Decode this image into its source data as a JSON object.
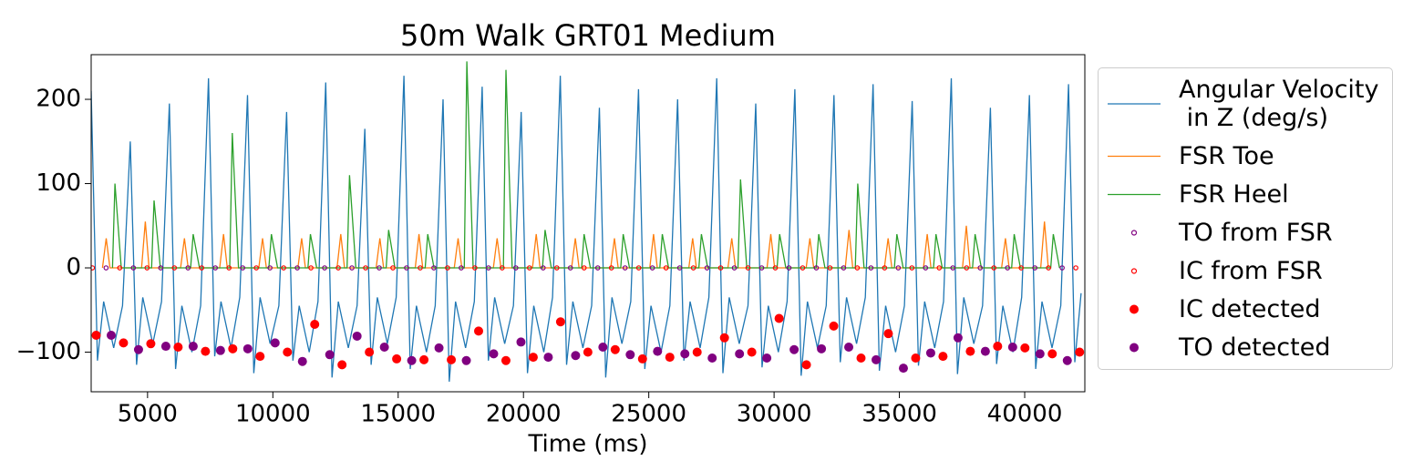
{
  "chart_data": {
    "type": "line",
    "title": "50m Walk GRT01 Medium",
    "xlabel": "Time (ms)",
    "xlim": [
      2750,
      42400
    ],
    "xticks": [
      5000,
      10000,
      15000,
      20000,
      25000,
      30000,
      35000,
      40000
    ],
    "ylim": [
      -147,
      253
    ],
    "yticks": [
      {
        "value": -100,
        "label": "−100"
      },
      0,
      100,
      200
    ],
    "legend": "outside-right",
    "series": [
      {
        "name": "Angular Velocity\n in Z (deg/s)",
        "color": "#1f77b4",
        "style": "line",
        "x": [
          2750,
          3000,
          3250,
          3650,
          4000,
          4310,
          4560,
          4810,
          5210,
          5560,
          5870,
          6120,
          6370,
          6770,
          7120,
          7430,
          7680,
          7930,
          8330,
          8680,
          8990,
          9240,
          9490,
          9890,
          10240,
          10550,
          10800,
          11050,
          11450,
          11800,
          12110,
          12360,
          12610,
          13010,
          13360,
          13670,
          13920,
          14170,
          14570,
          14920,
          15230,
          15480,
          15730,
          16130,
          16480,
          16790,
          17040,
          17290,
          17690,
          18040,
          18350,
          18600,
          18850,
          19250,
          19600,
          19910,
          20160,
          20410,
          20810,
          21160,
          21470,
          21720,
          21970,
          22370,
          22720,
          23030,
          23280,
          23530,
          23930,
          24280,
          24590,
          24840,
          25090,
          25490,
          25840,
          26150,
          26400,
          26650,
          27050,
          27400,
          27710,
          27960,
          28210,
          28610,
          28960,
          29270,
          29520,
          29770,
          30170,
          30520,
          30830,
          31080,
          31330,
          31730,
          32080,
          32390,
          32640,
          32890,
          33290,
          33640,
          33950,
          34200,
          34450,
          34850,
          35200,
          35510,
          35760,
          36010,
          36410,
          36760,
          37070,
          37320,
          37570,
          37970,
          38320,
          38630,
          38880,
          39130,
          39530,
          39880,
          40190,
          40440,
          40690,
          41090,
          41440,
          41750,
          42000,
          42250
        ],
        "values": [
          210,
          -110,
          -40,
          -95,
          -45,
          150,
          -115,
          -35,
          -90,
          -40,
          195,
          -120,
          -45,
          -100,
          -45,
          225,
          -105,
          -40,
          -95,
          -35,
          205,
          -125,
          -35,
          -90,
          -45,
          185,
          -110,
          -45,
          -100,
          -40,
          220,
          -130,
          -40,
          -95,
          -45,
          165,
          -115,
          -35,
          -90,
          -35,
          228,
          -120,
          -45,
          -100,
          -45,
          200,
          -135,
          -40,
          -95,
          -40,
          215,
          -110,
          -35,
          -90,
          -45,
          185,
          -125,
          -45,
          -100,
          -35,
          228,
          -115,
          -40,
          -95,
          -45,
          190,
          -130,
          -35,
          -90,
          -40,
          212,
          -120,
          -45,
          -100,
          -45,
          200,
          -110,
          -40,
          -95,
          -35,
          225,
          -125,
          -35,
          -90,
          -45,
          195,
          -118,
          -45,
          -100,
          -40,
          212,
          -128,
          -40,
          -95,
          -45,
          205,
          -112,
          -35,
          -90,
          -35,
          218,
          -122,
          -45,
          -100,
          -45,
          198,
          -116,
          -40,
          -95,
          -40,
          225,
          -126,
          -35,
          -90,
          -45,
          190,
          -114,
          -45,
          -100,
          -35,
          205,
          -120,
          -40,
          -95,
          -45,
          218,
          -112,
          -30
        ]
      },
      {
        "name": "FSR Toe",
        "color": "#ff7f0e",
        "style": "line",
        "x": [
          3200,
          3350,
          3500,
          4760,
          4910,
          5060,
          6320,
          6470,
          6620,
          7880,
          8030,
          8180,
          9440,
          9590,
          9740,
          11000,
          11150,
          11300,
          12560,
          12710,
          12860,
          14120,
          14270,
          14420,
          15680,
          15830,
          15980,
          17240,
          17390,
          17540,
          18800,
          18950,
          19100,
          20360,
          20510,
          20660,
          21920,
          22070,
          22220,
          23480,
          23630,
          23780,
          25040,
          25190,
          25340,
          26600,
          26750,
          26900,
          28160,
          28310,
          28460,
          29720,
          29870,
          30020,
          31280,
          31430,
          31580,
          32840,
          32990,
          33140,
          34400,
          34550,
          34700,
          35960,
          36110,
          36260,
          37520,
          37670,
          37820,
          39080,
          39230,
          39380,
          40640,
          40790,
          40940
        ],
        "values": [
          0,
          35,
          0,
          0,
          55,
          0,
          0,
          35,
          0,
          0,
          40,
          0,
          0,
          35,
          0,
          0,
          35,
          0,
          0,
          40,
          0,
          0,
          35,
          0,
          0,
          40,
          0,
          0,
          35,
          0,
          0,
          35,
          0,
          0,
          40,
          0,
          0,
          35,
          0,
          0,
          35,
          0,
          0,
          40,
          0,
          0,
          35,
          0,
          0,
          35,
          0,
          0,
          40,
          0,
          0,
          35,
          0,
          0,
          45,
          0,
          0,
          35,
          0,
          0,
          40,
          0,
          0,
          50,
          0,
          0,
          35,
          0,
          0,
          55,
          0
        ]
      },
      {
        "name": "FSR Heel",
        "color": "#2ca02c",
        "style": "line",
        "x": [
          3600,
          3700,
          3950,
          5160,
          5260,
          5510,
          6720,
          6820,
          7070,
          8280,
          8380,
          8630,
          9840,
          9940,
          10190,
          11400,
          11500,
          11750,
          12960,
          13060,
          13310,
          14520,
          14620,
          14870,
          16080,
          16180,
          16430,
          17640,
          17740,
          17990,
          19200,
          19300,
          19550,
          20760,
          20860,
          21110,
          22320,
          22420,
          22670,
          23880,
          23980,
          24230,
          25440,
          25540,
          25790,
          27000,
          27100,
          27350,
          28560,
          28660,
          28910,
          30120,
          30220,
          30470,
          31680,
          31780,
          32030,
          33240,
          33340,
          33590,
          34800,
          34900,
          35150,
          36360,
          36460,
          36710,
          37920,
          38020,
          38270,
          39480,
          39580,
          39830,
          41040,
          41140,
          41390
        ],
        "values": [
          0,
          100,
          0,
          0,
          80,
          0,
          0,
          40,
          0,
          0,
          160,
          0,
          0,
          40,
          0,
          0,
          40,
          0,
          0,
          110,
          0,
          0,
          45,
          0,
          0,
          40,
          0,
          0,
          245,
          0,
          0,
          235,
          0,
          0,
          45,
          0,
          0,
          40,
          0,
          0,
          40,
          0,
          0,
          40,
          0,
          0,
          40,
          0,
          0,
          105,
          0,
          0,
          40,
          0,
          0,
          40,
          0,
          0,
          100,
          0,
          0,
          40,
          0,
          0,
          40,
          0,
          0,
          40,
          0,
          0,
          40,
          0,
          0,
          40,
          0
        ]
      },
      {
        "name": "TO from FSR",
        "color": "#800080",
        "style": "open-marker",
        "x": [
          3345,
          4435,
          5525,
          6615,
          7705,
          8795,
          9885,
          10975,
          12065,
          13155,
          14245,
          15335,
          16425,
          17515,
          18605,
          19695,
          20785,
          21875,
          22965,
          24055,
          25145,
          26235,
          27325,
          28415,
          29505,
          30595,
          31685,
          32775,
          33865,
          34955,
          36045,
          37135,
          38225,
          39315,
          40405,
          41495
        ],
        "values": [
          0,
          0,
          0,
          0,
          0,
          0,
          0,
          0,
          0,
          0,
          0,
          0,
          0,
          0,
          0,
          0,
          0,
          0,
          0,
          0,
          0,
          0,
          0,
          0,
          0,
          0,
          0,
          0,
          0,
          0,
          0,
          0,
          0,
          0,
          0,
          0
        ]
      },
      {
        "name": "IC from FSR",
        "color": "#ff0000",
        "style": "open-marker",
        "x": [
          2800,
          3890,
          4980,
          6070,
          7160,
          8250,
          9340,
          10430,
          11520,
          12610,
          13700,
          14790,
          15880,
          16970,
          18060,
          19150,
          20240,
          21330,
          22420,
          23510,
          24600,
          25690,
          26780,
          27870,
          28960,
          30050,
          31140,
          32230,
          33320,
          34410,
          35500,
          36590,
          37680,
          38770,
          39860,
          40950,
          42040
        ],
        "values": [
          0,
          0,
          0,
          0,
          0,
          0,
          0,
          0,
          0,
          0,
          0,
          0,
          0,
          0,
          0,
          0,
          0,
          0,
          0,
          0,
          0,
          0,
          0,
          0,
          0,
          0,
          0,
          0,
          0,
          0,
          0,
          0,
          0,
          0,
          0,
          0,
          0
        ]
      },
      {
        "name": "IC detected",
        "color": "#ff0000",
        "style": "filled-marker",
        "x": [
          2950,
          4040,
          5130,
          6220,
          7310,
          8400,
          9490,
          10580,
          11670,
          12760,
          13850,
          14940,
          16030,
          17120,
          18210,
          19300,
          20390,
          21480,
          22570,
          23660,
          24750,
          25840,
          26930,
          28020,
          29110,
          30200,
          31290,
          32380,
          33470,
          34560,
          35650,
          36740,
          37830,
          38920,
          40010,
          41100,
          42190
        ],
        "values": [
          -80,
          -89,
          -90,
          -94,
          -99,
          -96,
          -105,
          -100,
          -67,
          -115,
          -100,
          -108,
          -109,
          -109,
          -75,
          -110,
          -106,
          -64,
          -100,
          -97,
          -108,
          -106,
          -100,
          -83,
          -100,
          -60,
          -115,
          -69,
          -107,
          -78,
          -107,
          -105,
          -99,
          -93,
          -95,
          -102,
          -100
        ]
      },
      {
        "name": "TO detected",
        "color": "#800080",
        "style": "filled-marker",
        "x": [
          3550,
          4640,
          5730,
          6820,
          7910,
          9000,
          10090,
          11180,
          12270,
          13360,
          14450,
          15540,
          16630,
          17720,
          18810,
          19900,
          20990,
          22080,
          23170,
          24260,
          25350,
          26440,
          27530,
          28620,
          29710,
          30800,
          31890,
          32980,
          34070,
          35160,
          36250,
          37340,
          38430,
          39520,
          40610,
          41700
        ],
        "values": [
          -80,
          -97,
          -93,
          -93,
          -98,
          -96,
          -89,
          -111,
          -103,
          -81,
          -94,
          -110,
          -95,
          -110,
          -102,
          -88,
          -106,
          -104,
          -94,
          -103,
          -99,
          -102,
          -107,
          -102,
          -107,
          -97,
          -96,
          -94,
          -109,
          -119,
          -101,
          -83,
          -99,
          -94,
          -102,
          -110
        ]
      }
    ]
  }
}
